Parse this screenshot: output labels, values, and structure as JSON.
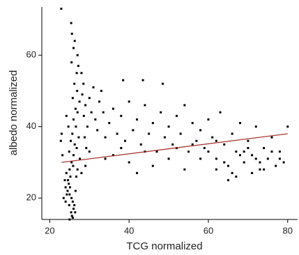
{
  "chart_data": {
    "type": "scatter",
    "x_label": "TCG normalized",
    "y_label": "albedo normalized",
    "xlim": [
      18,
      82.5
    ],
    "ylim": [
      14,
      73.5
    ],
    "xticks": [
      20,
      40,
      60,
      80
    ],
    "yticks": [
      20,
      40,
      60
    ],
    "series": [
      {
        "color": "#000000",
        "x": [
          24.5,
          25,
          25.5,
          24.8,
          25.2,
          24,
          25.8,
          26,
          25.4,
          25.6,
          26.2,
          24.6,
          25,
          25.5,
          26,
          26.3,
          25.7,
          26,
          26.5,
          25.8,
          26.2,
          26.8,
          25.5,
          26,
          25.6,
          25.4,
          26.3,
          27,
          27.2,
          26.9,
          27.5,
          27,
          26.6,
          27.3,
          26.8,
          27.6,
          24.2,
          23.8,
          23.5,
          24,
          26.5,
          26.7,
          27,
          25.9,
          24.9,
          25.3,
          24.7,
          23,
          22.8,
          23.2,
          22.9,
          24.2,
          28,
          28.5,
          28.2,
          29,
          28.6,
          29.5,
          28.8,
          29.2,
          30,
          30.5,
          31,
          31.5,
          32,
          32.5,
          33,
          33.5,
          34,
          35,
          36,
          37,
          38,
          38.5,
          39,
          40,
          41,
          42,
          43,
          43.5,
          44,
          45,
          46,
          47,
          48,
          48.5,
          49,
          50,
          51,
          52,
          53,
          54,
          55,
          56,
          57,
          58,
          59,
          60,
          61,
          62,
          63,
          64,
          65,
          66,
          67,
          68,
          69,
          70,
          71,
          72,
          73,
          74,
          75,
          76,
          77,
          78,
          79,
          80,
          36,
          40,
          44,
          46,
          50,
          52,
          54,
          56,
          58,
          60,
          62,
          64,
          66,
          68,
          70,
          72,
          74,
          76,
          78,
          65,
          67,
          71,
          73,
          69,
          62,
          42,
          38,
          34,
          30,
          29,
          28,
          25,
          25.8,
          26.4,
          24.3,
          24.9,
          25.1
        ],
        "y": [
          22,
          21,
          20,
          24,
          26,
          23,
          19,
          17,
          16,
          15,
          18,
          25,
          28,
          30,
          32,
          35,
          38,
          42,
          45,
          48,
          52,
          55,
          58,
          62,
          66,
          69,
          64,
          60,
          57,
          50,
          47,
          44,
          40,
          37,
          34,
          31,
          27,
          25,
          20,
          19,
          22,
          26,
          28,
          29,
          33,
          36,
          40,
          38,
          36,
          32,
          73,
          43,
          55,
          52,
          49,
          46,
          43,
          40,
          37,
          34,
          48,
          44,
          51,
          42,
          39,
          47,
          50,
          44,
          37,
          41,
          45,
          38,
          43,
          53,
          36,
          47,
          39,
          42,
          35,
          53,
          46,
          38,
          41,
          33,
          44,
          52,
          37,
          40,
          35,
          43,
          38,
          46,
          33,
          41,
          36,
          39,
          34,
          42,
          37,
          31,
          44,
          35,
          29,
          38,
          33,
          41,
          30,
          36,
          32,
          40,
          28,
          34,
          31,
          37,
          29,
          33,
          30,
          40,
          32,
          30,
          33,
          29,
          31,
          34,
          28,
          35,
          31,
          33,
          36,
          30,
          27,
          32,
          34,
          31,
          28,
          33,
          31,
          25,
          26,
          27,
          30,
          33,
          28,
          27,
          34,
          31,
          33,
          29,
          27,
          14,
          14.5,
          16,
          21,
          18,
          23
        ]
      }
    ],
    "trendline": {
      "color": "#a8362e",
      "x": [
        23,
        80
      ],
      "y": [
        30,
        38
      ]
    }
  }
}
